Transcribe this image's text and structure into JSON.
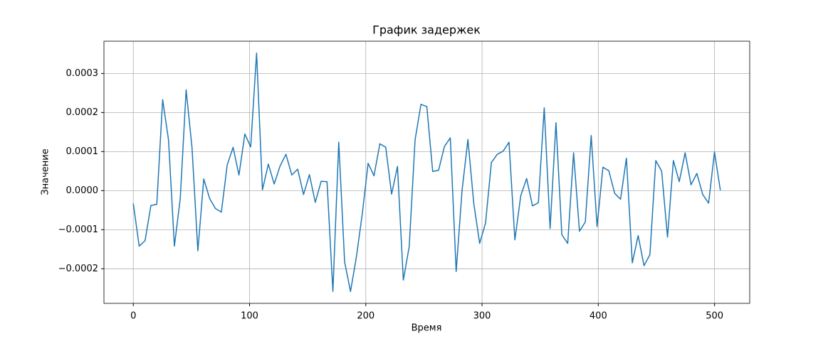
{
  "chart_data": {
    "type": "line",
    "title": "График задержек",
    "x_label": "Время",
    "y_label": "Значение",
    "x": [
      0,
      5.05,
      10.1,
      15.15,
      20.2,
      25.25,
      30.3,
      35.35,
      40.4,
      45.45,
      50.5,
      55.55,
      60.6,
      65.65,
      70.7,
      75.75,
      80.8,
      85.85,
      90.9,
      95.95,
      101,
      106.05,
      111.1,
      116.15,
      121.2,
      126.25,
      131.3,
      136.35,
      141.4,
      146.45,
      151.5,
      156.55,
      161.6,
      166.65,
      171.7,
      176.75,
      181.8,
      186.85,
      191.9,
      196.95,
      202,
      207.05,
      212.1,
      217.15,
      222.2,
      227.25,
      232.3,
      237.35,
      242.4,
      247.45,
      252.5,
      257.55,
      262.6,
      267.65,
      272.7,
      277.75,
      282.8,
      287.85,
      292.9,
      297.95,
      303,
      308.05,
      313.1,
      318.15,
      323.2,
      328.25,
      333.3,
      338.35,
      343.4,
      348.45,
      353.5,
      358.55,
      363.6,
      368.65,
      373.7,
      378.75,
      383.8,
      388.85,
      393.9,
      398.95,
      404,
      409.05,
      414.1,
      419.15,
      424.2,
      429.25,
      434.3,
      439.35,
      444.4,
      449.45,
      454.5,
      459.55,
      464.6,
      469.65,
      474.7,
      479.75,
      484.8,
      489.85,
      494.9,
      499.95,
      505
    ],
    "series": [
      {
        "color": "#1f77b4",
        "values": [
          -3.3e-05,
          -0.000142,
          -0.000128,
          -3.8e-05,
          -3.5e-05,
          0.000233,
          0.00013,
          -0.000142,
          -2e-05,
          0.000258,
          0.00011,
          -0.000154,
          3e-05,
          -2e-05,
          -4.6e-05,
          -5.5e-05,
          6.6e-05,
          0.000111,
          4e-05,
          0.000145,
          0.000112,
          0.000352,
          2e-06,
          6.8e-05,
          1.7e-05,
          6.3e-05,
          9.3e-05,
          4e-05,
          5.5e-05,
          -1e-05,
          4.1e-05,
          -3e-05,
          2.4e-05,
          2.3e-05,
          -0.000258,
          0.000124,
          -0.000183,
          -0.000258,
          -0.00017,
          -6e-05,
          7e-05,
          3.8e-05,
          0.00012,
          0.000111,
          -9e-06,
          6.2e-05,
          -0.000229,
          -0.000143,
          0.00013,
          0.000221,
          0.000215,
          4.9e-05,
          5.2e-05,
          0.000113,
          0.000135,
          -0.000207,
          0,
          0.000131,
          -3.3e-05,
          -0.000135,
          -8.3e-05,
          7.2e-05,
          9.3e-05,
          0.000101,
          0.000124,
          -0.000126,
          -1.3e-05,
          3.1e-05,
          -3.9e-05,
          -3.1e-05,
          0.000212,
          -9.7e-05,
          0.000174,
          -0.000113,
          -0.000135,
          9.7e-05,
          -0.000104,
          -8e-05,
          0.000141,
          -9.2e-05,
          6e-05,
          5.1e-05,
          -7e-06,
          -2.2e-05,
          8.3e-05,
          -0.000185,
          -0.000115,
          -0.000192,
          -0.000164,
          7.7e-05,
          5e-05,
          -0.000119,
          7.7e-05,
          2.3e-05,
          9.7e-05,
          1.5e-05,
          4.4e-05,
          -1e-05,
          -3.2e-05,
          9.9e-05,
          1e-06
        ]
      }
    ],
    "xlim": [
      -25.25,
      530.25
    ],
    "ylim": [
      -0.0002885,
      0.0003825
    ],
    "xticks": [
      0,
      100,
      200,
      300,
      400,
      500
    ],
    "yticks": [
      {
        "value": -0.0002,
        "label": "−0.0002"
      },
      {
        "value": -0.0001,
        "label": "−0.0001"
      },
      {
        "value": 0,
        "label": "0.0000"
      },
      {
        "value": 0.0001,
        "label": "0.0001"
      },
      {
        "value": 0.0002,
        "label": "0.0002"
      },
      {
        "value": 0.0003,
        "label": "0.0003"
      }
    ],
    "grid": true
  }
}
